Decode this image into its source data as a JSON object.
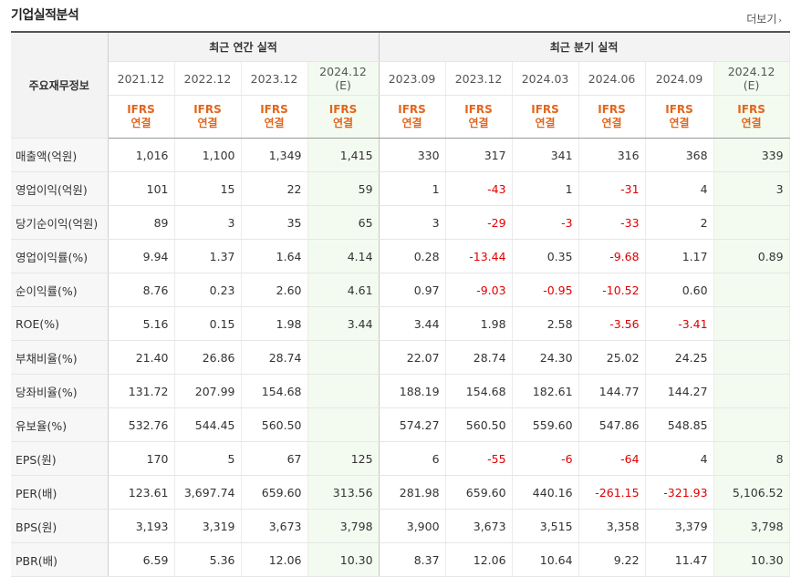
{
  "section": {
    "title": "기업실적분석",
    "more_label": "더보기"
  },
  "table": {
    "corner_label": "주요재무정보",
    "annual_group_label": "최근 연간 실적",
    "quarter_group_label": "최근 분기 실적",
    "annual_periods": [
      {
        "label": "2021.12",
        "estimate": ""
      },
      {
        "label": "2022.12",
        "estimate": ""
      },
      {
        "label": "2023.12",
        "estimate": ""
      },
      {
        "label": "2024.12",
        "estimate": "(E)"
      }
    ],
    "quarter_periods": [
      {
        "label": "2023.09",
        "estimate": ""
      },
      {
        "label": "2023.12",
        "estimate": ""
      },
      {
        "label": "2024.03",
        "estimate": ""
      },
      {
        "label": "2024.06",
        "estimate": ""
      },
      {
        "label": "2024.09",
        "estimate": ""
      },
      {
        "label": "2024.12",
        "estimate": "(E)"
      }
    ],
    "standard_line1": "IFRS",
    "standard_line2": "연결",
    "rows": [
      {
        "label": "매출액(억원)",
        "values": [
          "1,016",
          "1,100",
          "1,349",
          "1,415",
          "330",
          "317",
          "341",
          "316",
          "368",
          "339"
        ]
      },
      {
        "label": "영업이익(억원)",
        "values": [
          "101",
          "15",
          "22",
          "59",
          "1",
          "-43",
          "1",
          "-31",
          "4",
          "3"
        ]
      },
      {
        "label": "당기순이익(억원)",
        "values": [
          "89",
          "3",
          "35",
          "65",
          "3",
          "-29",
          "-3",
          "-33",
          "2",
          ""
        ]
      },
      {
        "label": "영업이익률(%)",
        "values": [
          "9.94",
          "1.37",
          "1.64",
          "4.14",
          "0.28",
          "-13.44",
          "0.35",
          "-9.68",
          "1.17",
          "0.89"
        ]
      },
      {
        "label": "순이익률(%)",
        "values": [
          "8.76",
          "0.23",
          "2.60",
          "4.61",
          "0.97",
          "-9.03",
          "-0.95",
          "-10.52",
          "0.60",
          ""
        ]
      },
      {
        "label": "ROE(%)",
        "values": [
          "5.16",
          "0.15",
          "1.98",
          "3.44",
          "3.44",
          "1.98",
          "2.58",
          "-3.56",
          "-3.41",
          ""
        ]
      },
      {
        "label": "부채비율(%)",
        "values": [
          "21.40",
          "26.86",
          "28.74",
          "",
          "22.07",
          "28.74",
          "24.30",
          "25.02",
          "24.25",
          ""
        ]
      },
      {
        "label": "당좌비율(%)",
        "values": [
          "131.72",
          "207.99",
          "154.68",
          "",
          "188.19",
          "154.68",
          "182.61",
          "144.77",
          "144.27",
          ""
        ]
      },
      {
        "label": "유보율(%)",
        "values": [
          "532.76",
          "544.45",
          "560.50",
          "",
          "574.27",
          "560.50",
          "559.60",
          "547.86",
          "548.85",
          ""
        ]
      },
      {
        "label": "EPS(원)",
        "values": [
          "170",
          "5",
          "67",
          "125",
          "6",
          "-55",
          "-6",
          "-64",
          "4",
          "8"
        ]
      },
      {
        "label": "PER(배)",
        "values": [
          "123.61",
          "3,697.74",
          "659.60",
          "313.56",
          "281.98",
          "659.60",
          "440.16",
          "-261.15",
          "-321.93",
          "5,106.52"
        ]
      },
      {
        "label": "BPS(원)",
        "values": [
          "3,193",
          "3,319",
          "3,673",
          "3,798",
          "3,900",
          "3,673",
          "3,515",
          "3,358",
          "3,379",
          "3,798"
        ]
      },
      {
        "label": "PBR(배)",
        "values": [
          "6.59",
          "5.36",
          "12.06",
          "10.30",
          "8.37",
          "12.06",
          "10.64",
          "9.22",
          "11.47",
          "10.30"
        ]
      }
    ]
  },
  "colors": {
    "negative": "#e00000",
    "standard": "#e2661c",
    "estimate_bg": "#f3fbf0",
    "header_bg": "#f3f3f3"
  }
}
